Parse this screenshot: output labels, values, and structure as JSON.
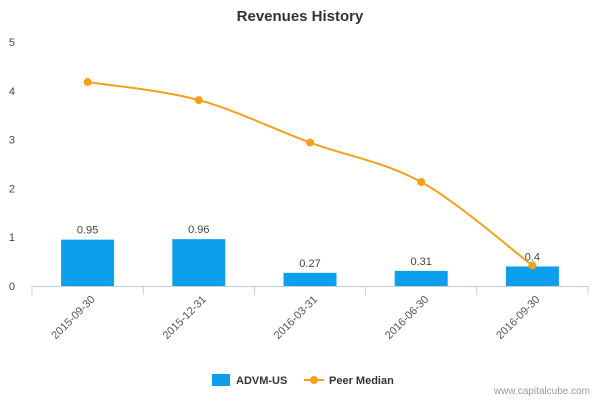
{
  "chart_data": {
    "type": "bar",
    "title": "Revenues History",
    "xlabel": "",
    "ylabel": "",
    "categories": [
      "2015-09-30",
      "2015-12-31",
      "2016-03-31",
      "2016-06-30",
      "2016-09-30"
    ],
    "ylim": [
      0,
      5
    ],
    "yticks": [
      0,
      1,
      2,
      3,
      4,
      5
    ],
    "grid": false,
    "legend_position": "bottom",
    "series": [
      {
        "name": "ADVM-US",
        "type": "bar",
        "color": "#0d9eec",
        "values": [
          0.95,
          0.96,
          0.27,
          0.31,
          0.4
        ],
        "labels": [
          "0.95",
          "0.96",
          "0.27",
          "0.31",
          "0.4"
        ]
      },
      {
        "name": "Peer Median",
        "type": "line",
        "color": "#f5a01a",
        "values": [
          4.18,
          3.81,
          2.94,
          2.13,
          0.42
        ]
      }
    ]
  },
  "watermark": "www.capitalcube.com"
}
